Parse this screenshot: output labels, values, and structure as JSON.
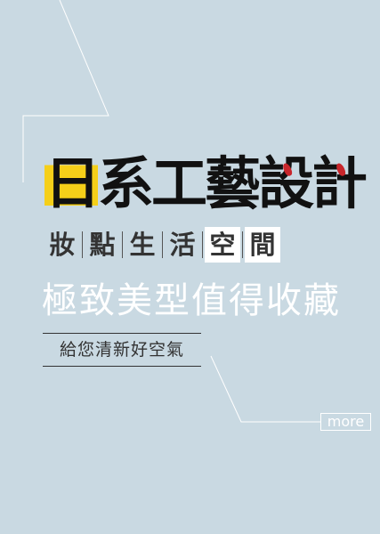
{
  "headline": {
    "line1": [
      "日",
      "系",
      "工",
      "藝",
      "設",
      "計"
    ],
    "line2": [
      "妝",
      "點",
      "生",
      "活",
      "空",
      "間"
    ],
    "line3": "極致美型值得收藏"
  },
  "tagline": "給您清新好空氣",
  "more_button": "more",
  "colors": {
    "background": "#c9d9e2",
    "highlight_yellow": "#f5cf19",
    "accent_red": "#c8262b"
  }
}
